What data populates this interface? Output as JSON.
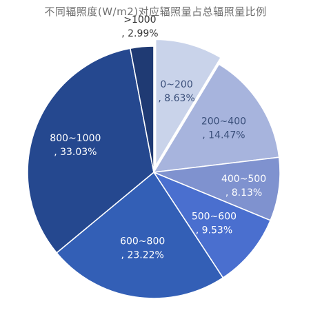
{
  "chart_data": {
    "type": "pie",
    "title": "不同辐照度(W/m2)对应辐照量占总辐照量比例",
    "slices": [
      {
        "label": "0~200",
        "pct_label": ", 8.63%",
        "value": 8.63,
        "color": "#c9d3ea",
        "text_color": "#3a4f7a"
      },
      {
        "label": "200~400",
        "pct_label": ", 14.47%",
        "value": 14.47,
        "color": "#a7b4dd",
        "text_color": "#3a4f7a"
      },
      {
        "label": "400~500",
        "pct_label": ", 8.13%",
        "value": 8.13,
        "color": "#7f92cf",
        "text_color": "#ffffff"
      },
      {
        "label": "500~600",
        "pct_label": ", 9.53%",
        "value": 9.53,
        "color": "#4a6fcf",
        "text_color": "#ffffff"
      },
      {
        "label": "600~800",
        "pct_label": ", 23.22%",
        "value": 23.22,
        "color": "#335fb6",
        "text_color": "#ffffff"
      },
      {
        "label": "800~1000",
        "pct_label": ", 33.03%",
        "value": 33.03,
        "color": "#25488f",
        "text_color": "#ffffff"
      },
      {
        "label": ">1000",
        "pct_label": ", 2.99%",
        "value": 2.99,
        "color": "#1f3a73",
        "text_color": "#333333"
      }
    ]
  }
}
